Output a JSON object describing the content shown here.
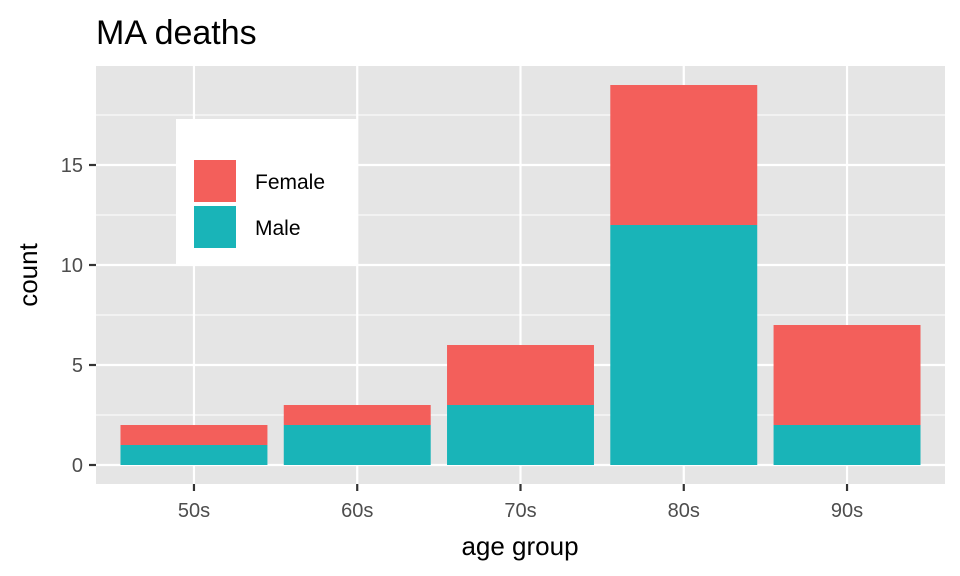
{
  "chart_data": {
    "type": "bar",
    "stacked": true,
    "title": "MA deaths",
    "xlabel": "age group",
    "ylabel": "count",
    "categories": [
      "50s",
      "60s",
      "70s",
      "80s",
      "90s"
    ],
    "series": [
      {
        "name": "Male",
        "values": [
          1,
          2,
          3,
          12,
          2
        ],
        "color": "#19b4b8"
      },
      {
        "name": "Female",
        "values": [
          1,
          1,
          3,
          7,
          5
        ],
        "color": "#f35f5b"
      }
    ],
    "ylim": [
      -0.95,
      19.95
    ],
    "yticks": [
      0,
      5,
      10,
      15
    ],
    "legend_order": [
      "Female",
      "Male"
    ],
    "legend_position": "top-left inside",
    "grid": true,
    "colors": {
      "panel": "#e5e5e5",
      "grid": "#ffffff",
      "tick": "#4d4d4d"
    }
  }
}
